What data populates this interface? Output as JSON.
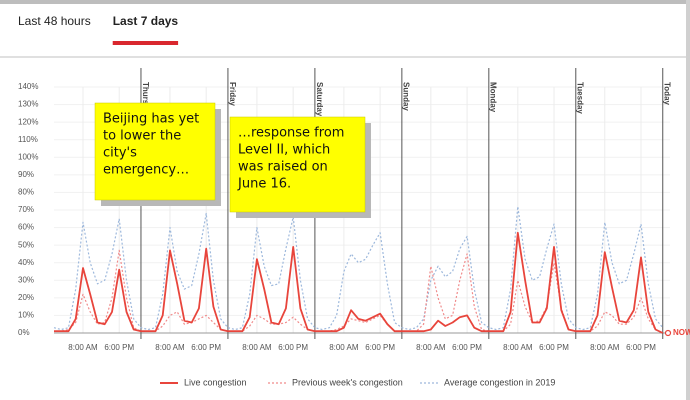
{
  "tabs": [
    {
      "label": "Last 48 hours",
      "active": false
    },
    {
      "label": "Last 7 days",
      "active": true
    }
  ],
  "chart_data": {
    "type": "line",
    "x": [
      0,
      2,
      4,
      6,
      8,
      10,
      12,
      14,
      16,
      18,
      20,
      22,
      24,
      26,
      28,
      30,
      32,
      34,
      36,
      38,
      40,
      42,
      44,
      46,
      48,
      50,
      52,
      54,
      56,
      58,
      60,
      62,
      64,
      66,
      68,
      70,
      72,
      74,
      76,
      78,
      80,
      82,
      84,
      86,
      88,
      90,
      92,
      94,
      96,
      98,
      100,
      102,
      104,
      106,
      108,
      110,
      112,
      114,
      116,
      118,
      120,
      122,
      124,
      126,
      128,
      130,
      132,
      134,
      136,
      138,
      140,
      142,
      144,
      146,
      148,
      150,
      152,
      154,
      156,
      158,
      160,
      162,
      164,
      166,
      168
    ],
    "xlim": [
      0,
      170
    ],
    "xticks": [
      {
        "value": 8,
        "label": "8:00 AM"
      },
      {
        "value": 18,
        "label": "6:00 PM"
      },
      {
        "value": 32,
        "label": "8:00 AM"
      },
      {
        "value": 42,
        "label": "6:00 PM"
      },
      {
        "value": 56,
        "label": "8:00 AM"
      },
      {
        "value": 66,
        "label": "6:00 PM"
      },
      {
        "value": 80,
        "label": "8:00 AM"
      },
      {
        "value": 90,
        "label": "6:00 PM"
      },
      {
        "value": 104,
        "label": "8:00 AM"
      },
      {
        "value": 114,
        "label": "6:00 PM"
      },
      {
        "value": 128,
        "label": "8:00 AM"
      },
      {
        "value": 138,
        "label": "6:00 PM"
      },
      {
        "value": 152,
        "label": "8:00 AM"
      },
      {
        "value": 162,
        "label": "6:00 PM"
      }
    ],
    "ylim": [
      0,
      140
    ],
    "yticks": [
      {
        "value": 0,
        "label": "0%"
      },
      {
        "value": 10,
        "label": "10%"
      },
      {
        "value": 20,
        "label": "20%"
      },
      {
        "value": 30,
        "label": "30%"
      },
      {
        "value": 40,
        "label": "40%"
      },
      {
        "value": 50,
        "label": "50%"
      },
      {
        "value": 60,
        "label": "60%"
      },
      {
        "value": 70,
        "label": "70%"
      },
      {
        "value": 80,
        "label": "80%"
      },
      {
        "value": 90,
        "label": "90%"
      },
      {
        "value": 100,
        "label": "100%"
      },
      {
        "value": 110,
        "label": "110%"
      },
      {
        "value": 120,
        "label": "120%"
      },
      {
        "value": 130,
        "label": "130%"
      },
      {
        "value": 140,
        "label": "140%"
      }
    ],
    "day_lines": [
      {
        "x": 24,
        "label": "Thursday"
      },
      {
        "x": 48,
        "label": "Friday"
      },
      {
        "x": 72,
        "label": "Saturday"
      },
      {
        "x": 96,
        "label": "Sunday"
      },
      {
        "x": 120,
        "label": "Monday"
      },
      {
        "x": 144,
        "label": "Tuesday"
      },
      {
        "x": 168,
        "label": "Today"
      }
    ],
    "now_label": "NOW",
    "series": [
      {
        "name": "Live congestion",
        "color": "#e8453c",
        "style": "solid",
        "values": [
          1,
          1,
          1,
          8,
          37,
          22,
          6,
          5,
          12,
          36,
          12,
          2,
          1,
          1,
          1,
          10,
          47,
          28,
          7,
          6,
          14,
          48,
          15,
          2,
          1,
          1,
          1,
          9,
          42,
          25,
          6,
          5,
          14,
          49,
          14,
          2,
          1,
          1,
          1,
          1,
          3,
          13,
          8,
          7,
          9,
          11,
          5,
          1,
          1,
          1,
          1,
          1,
          2,
          7,
          4,
          6,
          9,
          10,
          3,
          1,
          1,
          1,
          1,
          12,
          57,
          30,
          6,
          6,
          14,
          49,
          13,
          2,
          1,
          1,
          1,
          10,
          46,
          26,
          7,
          6,
          13,
          43,
          12,
          2,
          0
        ]
      },
      {
        "name": "Previous week's congestion",
        "color": "#f08a8a",
        "style": "dotted",
        "values": [
          1,
          1,
          2,
          6,
          22,
          12,
          5,
          6,
          20,
          47,
          20,
          3,
          1,
          1,
          1,
          4,
          10,
          12,
          5,
          6,
          8,
          10,
          6,
          2,
          1,
          1,
          1,
          4,
          10,
          8,
          5,
          5,
          6,
          9,
          5,
          2,
          1,
          1,
          1,
          2,
          4,
          8,
          7,
          6,
          8,
          10,
          5,
          1,
          1,
          1,
          1,
          5,
          38,
          20,
          8,
          10,
          30,
          45,
          15,
          2,
          1,
          1,
          1,
          5,
          30,
          15,
          6,
          7,
          15,
          40,
          14,
          2,
          1,
          1,
          1,
          4,
          12,
          10,
          5,
          5,
          9,
          20,
          8,
          2,
          0
        ]
      },
      {
        "name": "Average congestion in 2019",
        "color": "#9db8dc",
        "style": "dotted",
        "values": [
          3,
          2,
          3,
          25,
          63,
          40,
          28,
          30,
          45,
          65,
          30,
          8,
          3,
          2,
          3,
          22,
          60,
          35,
          25,
          27,
          45,
          68,
          30,
          8,
          3,
          2,
          3,
          22,
          60,
          38,
          27,
          28,
          48,
          66,
          30,
          8,
          3,
          2,
          3,
          10,
          35,
          45,
          40,
          42,
          50,
          57,
          28,
          6,
          3,
          2,
          3,
          8,
          30,
          38,
          32,
          35,
          48,
          55,
          25,
          6,
          3,
          2,
          3,
          25,
          72,
          42,
          30,
          32,
          48,
          62,
          28,
          8,
          3,
          2,
          3,
          22,
          63,
          40,
          28,
          30,
          45,
          62,
          28,
          8,
          3
        ]
      }
    ],
    "annotations": [
      {
        "lines": [
          "Beijing has yet",
          "to lower the",
          "city's",
          "emergency…"
        ]
      },
      {
        "lines": [
          "…response from",
          "Level II, which",
          "was raised on",
          "June 16."
        ]
      }
    ]
  }
}
